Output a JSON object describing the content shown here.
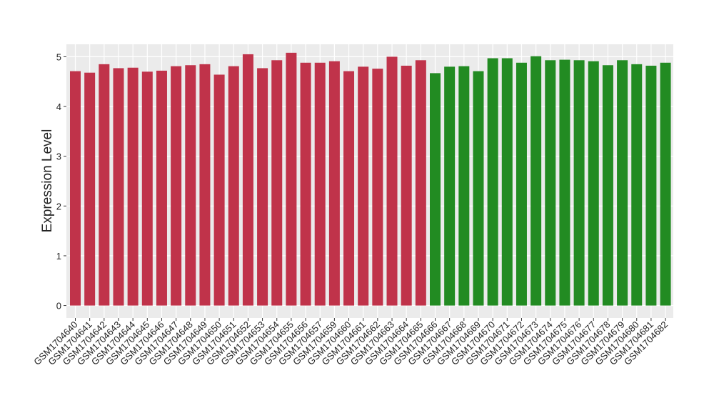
{
  "chart_data": {
    "type": "bar",
    "y_label": "Expression Level",
    "categories": [
      "GSM1704640",
      "GSM1704641",
      "GSM1704642",
      "GSM1704643",
      "GSM1704644",
      "GSM1704645",
      "GSM1704646",
      "GSM1704647",
      "GSM1704648",
      "GSM1704649",
      "GSM1704650",
      "GSM1704651",
      "GSM1704652",
      "GSM1704653",
      "GSM1704654",
      "GSM1704655",
      "GSM1704656",
      "GSM1704657",
      "GSM1704659",
      "GSM1704660",
      "GSM1704661",
      "GSM1704662",
      "GSM1704663",
      "GSM1704664",
      "GSM1704665",
      "GSM1704666",
      "GSM1704667",
      "GSM1704668",
      "GSM1704669",
      "GSM1704670",
      "GSM1704671",
      "GSM1704672",
      "GSM1704673",
      "GSM1704674",
      "GSM1704675",
      "GSM1704676",
      "GSM1704677",
      "GSM1704678",
      "GSM1704679",
      "GSM1704680",
      "GSM1704681",
      "GSM1704682"
    ],
    "series": [
      {
        "color": "#c0334a",
        "values": [
          4.71,
          4.68,
          4.85,
          4.77,
          4.78,
          4.7,
          4.72,
          4.81,
          4.83,
          4.85,
          4.64,
          4.81,
          5.05,
          4.77,
          4.93,
          5.08,
          4.88,
          4.88,
          4.91,
          4.71,
          4.8,
          4.76,
          5.0,
          4.82,
          4.93,
          null,
          null,
          null,
          null,
          null,
          null,
          null,
          null,
          null,
          null,
          null,
          null,
          null,
          null,
          null,
          null,
          null
        ]
      },
      {
        "color": "#228b22",
        "values": [
          null,
          null,
          null,
          null,
          null,
          null,
          null,
          null,
          null,
          null,
          null,
          null,
          null,
          null,
          null,
          null,
          null,
          null,
          null,
          null,
          null,
          null,
          null,
          null,
          null,
          4.67,
          4.8,
          4.81,
          4.71,
          4.97,
          4.97,
          4.88,
          5.01,
          4.93,
          4.94,
          4.93,
          4.91,
          4.83,
          4.93,
          4.85,
          4.82,
          4.88
        ]
      }
    ],
    "ylim": [
      -0.25,
      5.25
    ],
    "yticks": [
      0,
      1,
      2,
      3,
      4,
      5
    ],
    "grid": true
  }
}
